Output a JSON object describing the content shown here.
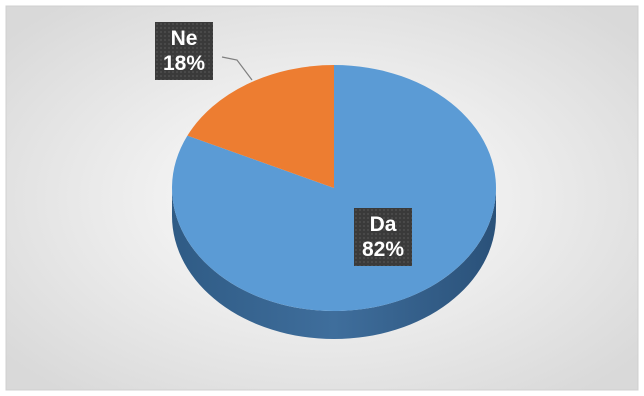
{
  "chart_data": {
    "type": "pie",
    "style": "3d",
    "categories": [
      "Da",
      "Ne"
    ],
    "values": [
      82,
      18
    ],
    "value_labels": [
      "82%",
      "18%"
    ],
    "colors": [
      "#5b9bd5",
      "#ed7d31"
    ],
    "side_colors": [
      "#3f6e9c",
      "#b35a1f"
    ],
    "title": "",
    "legend": "none",
    "data_labels": "category-and-percent"
  }
}
